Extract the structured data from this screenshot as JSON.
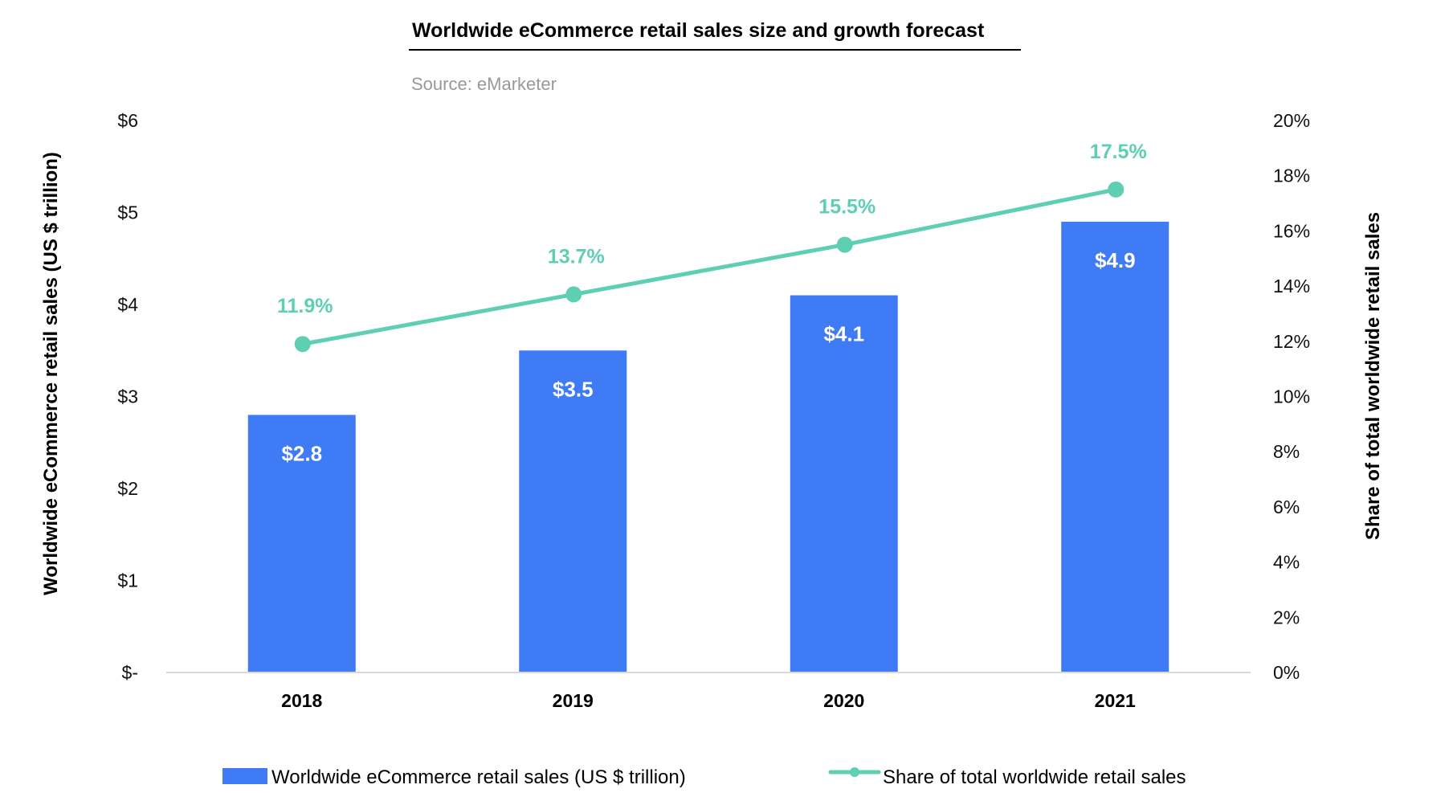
{
  "chart_data": {
    "type": "bar+line",
    "title": "Worldwide eCommerce retail sales size and growth forecast",
    "subtitle": "Source: eMarketer",
    "categories": [
      "2018",
      "2019",
      "2020",
      "2021"
    ],
    "series": [
      {
        "name": "Worldwide eCommerce retail sales (US $ trillion)",
        "type": "bar",
        "axis": "left",
        "values": [
          2.8,
          3.5,
          4.1,
          4.9
        ],
        "labels": [
          "$2.8",
          "$3.5",
          "$4.1",
          "$4.9"
        ],
        "color": "#3f7bf5"
      },
      {
        "name": "Share of total worldwide retail sales",
        "type": "line",
        "axis": "right",
        "values": [
          11.9,
          13.7,
          15.5,
          17.5
        ],
        "labels": [
          "11.9%",
          "13.7%",
          "15.5%",
          "17.5%"
        ],
        "color": "#5fcfb4"
      }
    ],
    "y_left": {
      "label": "Worldwide eCommerce retail sales (US $ trillion)",
      "range": [
        0,
        6
      ],
      "ticks": [
        0,
        1,
        2,
        3,
        4,
        5,
        6
      ],
      "tick_labels": [
        "$-",
        "$1",
        "$2",
        "$3",
        "$4",
        "$5",
        "$6"
      ]
    },
    "y_right": {
      "label": "Share of total worldwide retail sales",
      "range": [
        0,
        20
      ],
      "ticks": [
        0,
        2,
        4,
        6,
        8,
        10,
        12,
        14,
        16,
        18,
        20
      ],
      "tick_labels": [
        "0%",
        "2%",
        "4%",
        "6%",
        "8%",
        "10%",
        "12%",
        "14%",
        "16%",
        "18%",
        "20%"
      ]
    },
    "grid": false,
    "legend": {
      "position": "bottom",
      "entries": [
        "Worldwide eCommerce retail sales (US $ trillion)",
        "Share of total worldwide retail sales"
      ]
    },
    "axis_color": "#d9d9d9"
  }
}
